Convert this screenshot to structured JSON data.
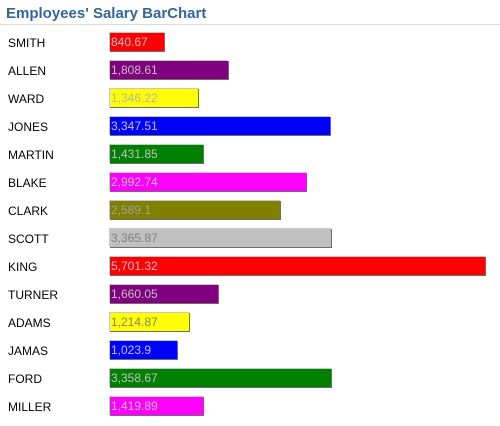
{
  "page": {
    "title": "Employees' Salary BarChart"
  },
  "chart_data": {
    "type": "bar",
    "orientation": "horizontal",
    "title": "Employees' Salary BarChart",
    "categories": [
      "SMITH",
      "ALLEN",
      "WARD",
      "JONES",
      "MARTIN",
      "BLAKE",
      "CLARK",
      "SCOTT",
      "KING",
      "TURNER",
      "ADAMS",
      "JAMAS",
      "FORD",
      "MILLER"
    ],
    "values": [
      840.67,
      1808.61,
      1346.22,
      3347.51,
      1431.85,
      2992.74,
      2589.1,
      3365.87,
      5701.32,
      1660.05,
      1214.87,
      1023.9,
      3358.67,
      1419.89
    ],
    "value_labels": [
      "840.67",
      "1,808.61",
      "1,346.22",
      "3,347.51",
      "1,431.85",
      "2,992.74",
      "2,589.1",
      "3,365.87",
      "5,701.32",
      "1,660.05",
      "1,214.87",
      "1,023.9",
      "3,358.67",
      "1,419.89"
    ],
    "colors": [
      "#ff0000",
      "#800080",
      "#ffff00",
      "#0000ff",
      "#008000",
      "#ff00ff",
      "#808000",
      "#c0c0c0",
      "#ff0000",
      "#800080",
      "#ffff00",
      "#0000ff",
      "#008000",
      "#ff00ff"
    ],
    "value_label_colors": [
      "#c0c0c0",
      "#c0c0c0",
      "#b4b4b4",
      "#c0c0c0",
      "#c0c0c0",
      "#c0c0c0",
      "#a0a0a0",
      "#808080",
      "#c0c0c0",
      "#c0c0c0",
      "#808080",
      "#c0c0c0",
      "#c0c0c0",
      "#c0c0c0"
    ],
    "xlim": [
      0,
      5701.32
    ],
    "grid": false,
    "legend": "none"
  }
}
